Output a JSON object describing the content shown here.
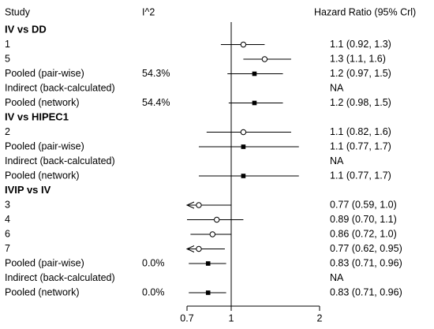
{
  "chart_data": {
    "type": "forest",
    "headers": {
      "study": "Study",
      "i2": "I^2",
      "effect": "Hazard Ratio (95% Crl)"
    },
    "x_scale": "log",
    "xlim": [
      0.7,
      2
    ],
    "xticks": [
      0.7,
      1,
      2
    ],
    "xtick_labels": [
      "0.7",
      "1",
      "2"
    ],
    "reference_line": 1,
    "groups": [
      {
        "name": "IV vs DD",
        "rows": [
          {
            "label": "1",
            "i2": "",
            "est": 1.1,
            "lo": 0.92,
            "hi": 1.3,
            "text": "1.1 (0.92, 1.3)",
            "marker": "open-circle"
          },
          {
            "label": "5",
            "i2": "",
            "est": 1.3,
            "lo": 1.1,
            "hi": 1.6,
            "text": "1.3 (1.1, 1.6)",
            "marker": "open-circle"
          },
          {
            "label": "Pooled (pair-wise)",
            "i2": "54.3%",
            "est": 1.2,
            "lo": 0.97,
            "hi": 1.5,
            "text": "1.2 (0.97, 1.5)",
            "marker": "filled-square"
          },
          {
            "label": "Indirect (back-calculated)",
            "i2": "",
            "est": null,
            "lo": null,
            "hi": null,
            "text": "NA",
            "marker": "none"
          },
          {
            "label": "Pooled (network)",
            "i2": "54.4%",
            "est": 1.2,
            "lo": 0.98,
            "hi": 1.5,
            "text": "1.2 (0.98, 1.5)",
            "marker": "filled-square"
          }
        ]
      },
      {
        "name": "IV vs HIPEC1",
        "rows": [
          {
            "label": "2",
            "i2": "",
            "est": 1.1,
            "lo": 0.82,
            "hi": 1.6,
            "text": "1.1 (0.82, 1.6)",
            "marker": "open-circle"
          },
          {
            "label": "Pooled (pair-wise)",
            "i2": "",
            "est": 1.1,
            "lo": 0.77,
            "hi": 1.7,
            "text": "1.1 (0.77, 1.7)",
            "marker": "filled-square"
          },
          {
            "label": "Indirect (back-calculated)",
            "i2": "",
            "est": null,
            "lo": null,
            "hi": null,
            "text": "NA",
            "marker": "none"
          },
          {
            "label": "Pooled (network)",
            "i2": "",
            "est": 1.1,
            "lo": 0.77,
            "hi": 1.7,
            "text": "1.1 (0.77, 1.7)",
            "marker": "filled-square"
          }
        ]
      },
      {
        "name": "IVIP vs IV",
        "rows": [
          {
            "label": "3",
            "i2": "",
            "est": 0.77,
            "lo": 0.59,
            "hi": 1.0,
            "text": "0.77 (0.59, 1.0)",
            "marker": "open-circle"
          },
          {
            "label": "4",
            "i2": "",
            "est": 0.89,
            "lo": 0.7,
            "hi": 1.1,
            "text": "0.89 (0.70, 1.1)",
            "marker": "open-circle"
          },
          {
            "label": "6",
            "i2": "",
            "est": 0.86,
            "lo": 0.72,
            "hi": 1.0,
            "text": "0.86 (0.72, 1.0)",
            "marker": "open-circle"
          },
          {
            "label": "7",
            "i2": "",
            "est": 0.77,
            "lo": 0.62,
            "hi": 0.95,
            "text": "0.77 (0.62, 0.95)",
            "marker": "open-circle"
          },
          {
            "label": "Pooled (pair-wise)",
            "i2": "0.0%",
            "est": 0.83,
            "lo": 0.71,
            "hi": 0.96,
            "text": "0.83 (0.71, 0.96)",
            "marker": "filled-square"
          },
          {
            "label": "Indirect (back-calculated)",
            "i2": "",
            "est": null,
            "lo": null,
            "hi": null,
            "text": "NA",
            "marker": "none"
          },
          {
            "label": "Pooled (network)",
            "i2": "0.0%",
            "est": 0.83,
            "lo": 0.71,
            "hi": 0.96,
            "text": "0.83 (0.71, 0.96)",
            "marker": "filled-square"
          }
        ]
      }
    ]
  }
}
